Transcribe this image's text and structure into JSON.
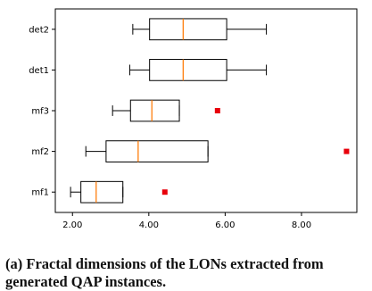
{
  "chart_data": {
    "type": "boxplot",
    "orientation": "horizontal",
    "categories": [
      "mf1",
      "mf2",
      "mf3",
      "det1",
      "det2"
    ],
    "boxes": [
      {
        "label": "mf1",
        "whisker_low": 1.95,
        "q1": 2.22,
        "median": 2.62,
        "q3": 3.32,
        "whisker_high": 3.32,
        "fliers": [
          4.42
        ]
      },
      {
        "label": "mf2",
        "whisker_low": 2.35,
        "q1": 2.88,
        "median": 3.72,
        "q3": 5.55,
        "whisker_high": 5.55,
        "fliers": [
          9.18
        ]
      },
      {
        "label": "mf3",
        "whisker_low": 3.05,
        "q1": 3.52,
        "median": 4.08,
        "q3": 4.8,
        "whisker_high": 4.8,
        "fliers": [
          5.8
        ]
      },
      {
        "label": "det1",
        "whisker_low": 3.5,
        "q1": 4.02,
        "median": 4.9,
        "q3": 6.04,
        "whisker_high": 7.08,
        "fliers": []
      },
      {
        "label": "det2",
        "whisker_low": 3.58,
        "q1": 4.02,
        "median": 4.9,
        "q3": 6.04,
        "whisker_high": 7.08,
        "fliers": []
      }
    ],
    "xlim": [
      1.55,
      9.45
    ],
    "xticks": [
      "2.00",
      "4.00",
      "6.00",
      "8.00"
    ],
    "xtick_values": [
      2,
      4,
      6,
      8
    ],
    "grid": false,
    "colors": {
      "box": "#000000",
      "median": "#ff7f0e",
      "flier": "#e8000b"
    }
  },
  "caption": "(a) Fractal dimensions of the LONs extracted from generated QAP instances."
}
